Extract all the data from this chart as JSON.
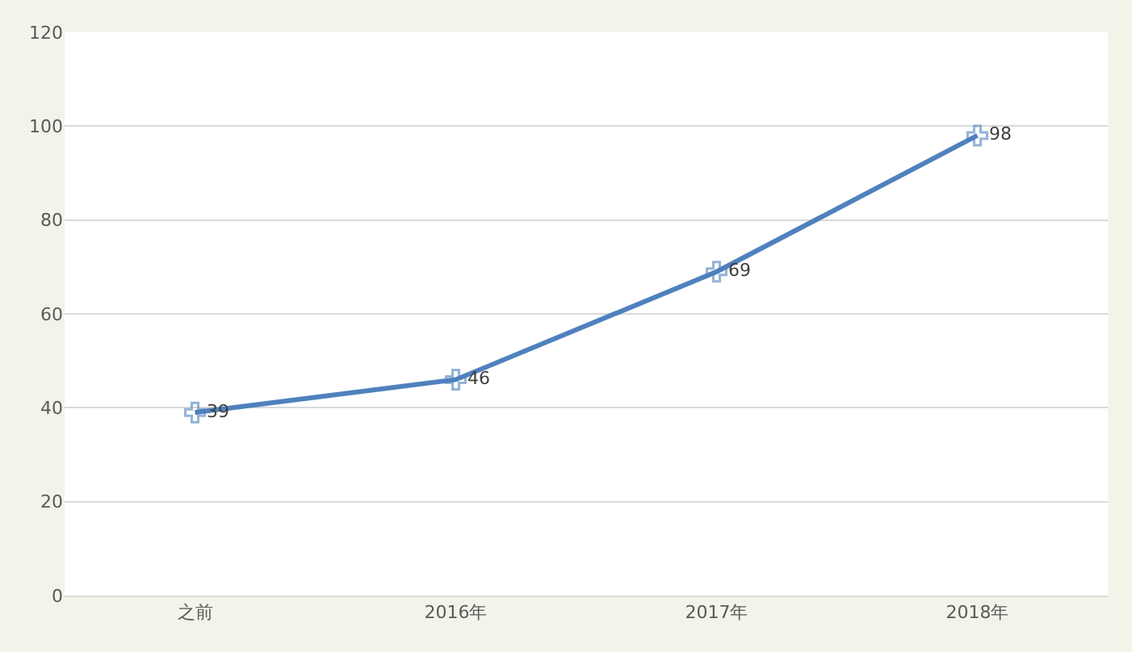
{
  "chart_data": {
    "type": "line",
    "categories": [
      "之前",
      "2016年",
      "2017年",
      "2018年"
    ],
    "series": [
      {
        "color": "#4f81bd",
        "values": [
          39,
          46,
          69,
          98
        ]
      }
    ],
    "ylim": [
      0,
      120
    ],
    "yticks": [
      0,
      20,
      40,
      60,
      80,
      100,
      120
    ],
    "grid": "y",
    "marker": "cross",
    "line_style": "solid",
    "data_labels": true,
    "legend": false
  }
}
